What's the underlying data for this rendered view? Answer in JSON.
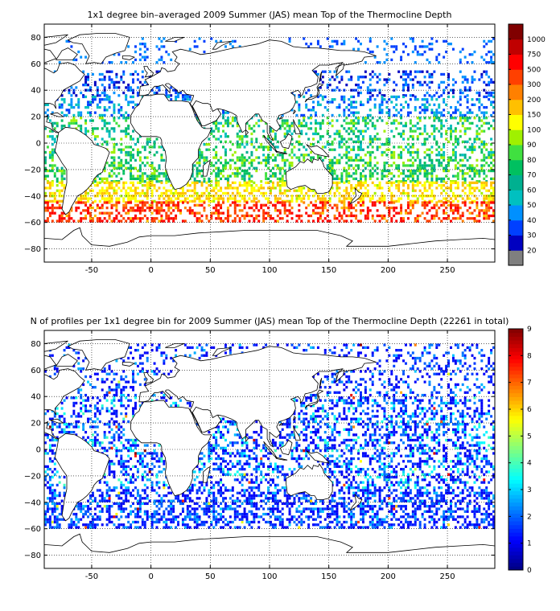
{
  "panels": [
    {
      "title": "1x1 degree bin–averaged 2009 Summer (JAS) mean Top of the Thermocline Depth",
      "x_ticks": [
        "-50",
        "0",
        "50",
        "100",
        "150",
        "200",
        "250"
      ],
      "y_ticks": [
        "80",
        "60",
        "40",
        "20",
        "0",
        "−20",
        "−40",
        "−60",
        "−80"
      ],
      "colorbar_labels": [
        "20",
        "30",
        "40",
        "50",
        "60",
        "70",
        "80",
        "90",
        "100",
        "150",
        "200",
        "300",
        "500",
        "750",
        "1000"
      ]
    },
    {
      "title": "N of profiles per 1x1 degree bin for 2009 Summer (JAS) mean Top of the Thermocline Depth  (22261 in total)",
      "x_ticks": [
        "-50",
        "0",
        "50",
        "100",
        "150",
        "200",
        "250"
      ],
      "y_ticks": [
        "80",
        "60",
        "40",
        "20",
        "0",
        "−20",
        "−40",
        "−60",
        "−80"
      ],
      "colorbar_labels": [
        "0",
        "1",
        "2",
        "3",
        "4",
        "5",
        "6",
        "7",
        "8",
        "9"
      ]
    }
  ],
  "chart_data": [
    {
      "type": "heatmap",
      "title": "1x1 degree bin–averaged 2009 Summer (JAS) mean Top of the Thermocline Depth",
      "xlim": [
        -90,
        290
      ],
      "ylim": [
        -90,
        90
      ],
      "x_ticks": [
        -50,
        0,
        50,
        100,
        150,
        200,
        250
      ],
      "y_ticks": [
        80,
        60,
        40,
        20,
        0,
        -20,
        -40,
        -60,
        -80
      ],
      "grid": true,
      "colorbar": {
        "orientation": "vertical",
        "position": "right",
        "levels": [
          20,
          30,
          40,
          50,
          60,
          70,
          80,
          90,
          100,
          150,
          200,
          300,
          500,
          750,
          1000
        ],
        "colors": [
          "#7f7f7f",
          "#0000c0",
          "#0040ff",
          "#0090ff",
          "#00c0c0",
          "#00b090",
          "#00c060",
          "#40e040",
          "#a0f000",
          "#ffff00",
          "#ffc000",
          "#ff8000",
          "#ff4000",
          "#ff0000",
          "#c00000",
          "#800000"
        ]
      },
      "latitude_bands": [
        {
          "lat": [
            60,
            80
          ],
          "level_range": [
            30,
            50
          ],
          "density": 0.15
        },
        {
          "lat": [
            35,
            55
          ],
          "level_range": [
            20,
            50
          ],
          "density": 0.3
        },
        {
          "lat": [
            20,
            35
          ],
          "level_range": [
            30,
            60
          ],
          "density": 0.35
        },
        {
          "lat": [
            -10,
            20
          ],
          "level_range": [
            50,
            100
          ],
          "density": 0.35
        },
        {
          "lat": [
            -30,
            -10
          ],
          "level_range": [
            60,
            100
          ],
          "density": 0.45
        },
        {
          "lat": [
            -45,
            -30
          ],
          "level_range": [
            90,
            200
          ],
          "density": 0.5
        },
        {
          "lat": [
            -60,
            -45
          ],
          "level_range": [
            150,
            750
          ],
          "density": 0.45
        }
      ]
    },
    {
      "type": "heatmap",
      "title": "N of profiles per 1x1 degree bin for 2009 Summer (JAS) mean Top of the Thermocline Depth  (22261 in total)",
      "total_profiles": 22261,
      "xlim": [
        -90,
        290
      ],
      "ylim": [
        -90,
        90
      ],
      "x_ticks": [
        -50,
        0,
        50,
        100,
        150,
        200,
        250
      ],
      "y_ticks": [
        80,
        60,
        40,
        20,
        0,
        -20,
        -40,
        -60,
        -80
      ],
      "grid": true,
      "colorbar": {
        "orientation": "vertical",
        "position": "right",
        "range": [
          0,
          9
        ],
        "ticks": [
          0,
          1,
          2,
          3,
          4,
          5,
          6,
          7,
          8,
          9
        ],
        "colormap": "jet"
      },
      "latitude_bands": [
        {
          "lat": [
            40,
            80
          ],
          "value_range": [
            1,
            3
          ],
          "density": 0.25
        },
        {
          "lat": [
            -30,
            40
          ],
          "value_range": [
            1,
            4
          ],
          "density": 0.4
        },
        {
          "lat": [
            -60,
            -30
          ],
          "value_range": [
            1,
            3
          ],
          "density": 0.5
        }
      ]
    }
  ]
}
